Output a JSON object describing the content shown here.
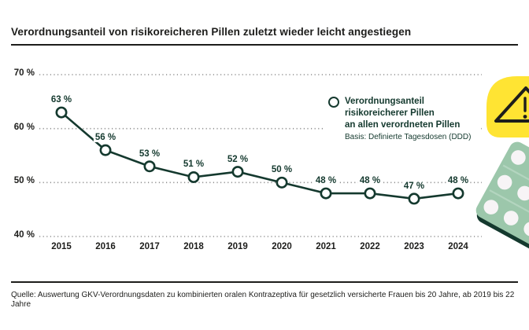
{
  "header": {
    "title": "Verordnungsanteil von risikoreicheren Pillen zuletzt wieder leicht angestiegen"
  },
  "legend": {
    "line1": "Verordnungsanteil",
    "line2": "risikoreicherer Pillen",
    "line3": "an allen verordneten Pillen",
    "basis": "Basis: Definierte Tagesdosen (DDD)"
  },
  "source": {
    "text": "Quelle: Auswertung GKV-Verordnungsdaten zu kombinierten oralen Kontrazeptiva für gesetzlich versicherte Frauen bis 20 Jahre, ab 2019 bis 22 Jahre"
  },
  "icons": {
    "legend_marker": "circle-series-marker",
    "warning": "warning-triangle",
    "blister": "pill-blister-pack"
  },
  "colors": {
    "line": "#14392e",
    "marker_fill": "#ffffff",
    "grid": "#8f8f8f",
    "text": "#1d1d1b",
    "accent_yellow": "#ffe433",
    "blister_green": "#9cc7ab",
    "blister_divider": "#b3d5bf",
    "pill_white": "#f7f4f6"
  },
  "chart_data": {
    "type": "line",
    "title": "Verordnungsanteil von risikoreicheren Pillen zuletzt wieder leicht angestiegen",
    "categories": [
      "2015",
      "2016",
      "2017",
      "2018",
      "2019",
      "2020",
      "2021",
      "2022",
      "2023",
      "2024"
    ],
    "values": [
      63,
      56,
      53,
      51,
      52,
      50,
      48,
      48,
      47,
      48
    ],
    "point_labels": [
      "63 %",
      "56 %",
      "53 %",
      "51 %",
      "52 %",
      "50 %",
      "48 %",
      "48 %",
      "47 %",
      "48 %"
    ],
    "unit": "%",
    "ylim": [
      40,
      70
    ],
    "yticks": [
      {
        "value": 70,
        "label": "70 %"
      },
      {
        "value": 60,
        "label": "60 %"
      },
      {
        "value": 50,
        "label": "50 %"
      },
      {
        "value": 40,
        "label": "40 %"
      }
    ],
    "grid": "horizontal-dotted",
    "legend_position": "inside-top-right",
    "legend_entry": "Verordnungsanteil risikoreicherer Pillen an allen verordneten Pillen",
    "legend_note": "Basis: Definierte Tagesdosen (DDD)"
  }
}
